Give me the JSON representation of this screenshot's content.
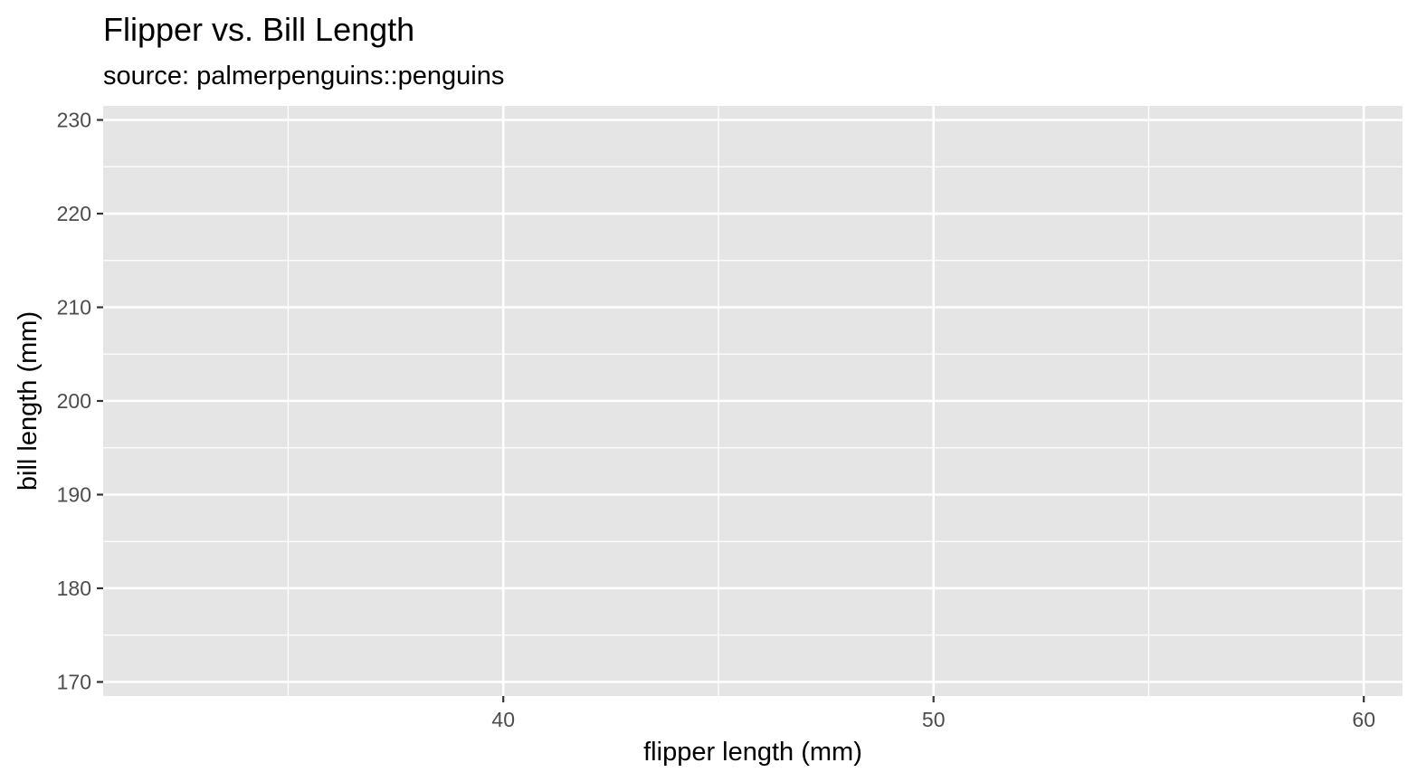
{
  "chart_data": {
    "type": "scatter",
    "title": "Flipper vs. Bill Length",
    "subtitle": "source: palmerpenguins::penguins",
    "xlabel": "flipper length (mm)",
    "ylabel": "bill length (mm)",
    "xlim": [
      30.7,
      60.9
    ],
    "ylim": [
      168.5,
      231.5
    ],
    "x_ticks": [
      40,
      50,
      60
    ],
    "x_tick_labels": [
      "40",
      "50",
      "60"
    ],
    "x_minor_ticks": [
      35,
      45,
      55
    ],
    "y_ticks": [
      170,
      180,
      190,
      200,
      210,
      220,
      230
    ],
    "y_tick_labels": [
      "170",
      "180",
      "190",
      "200",
      "210",
      "220",
      "230"
    ],
    "y_minor_ticks": [
      175,
      185,
      195,
      205,
      215,
      225
    ],
    "points": [],
    "grid": true,
    "panel_background": "#e5e5e5",
    "grid_color": "#ffffff"
  }
}
